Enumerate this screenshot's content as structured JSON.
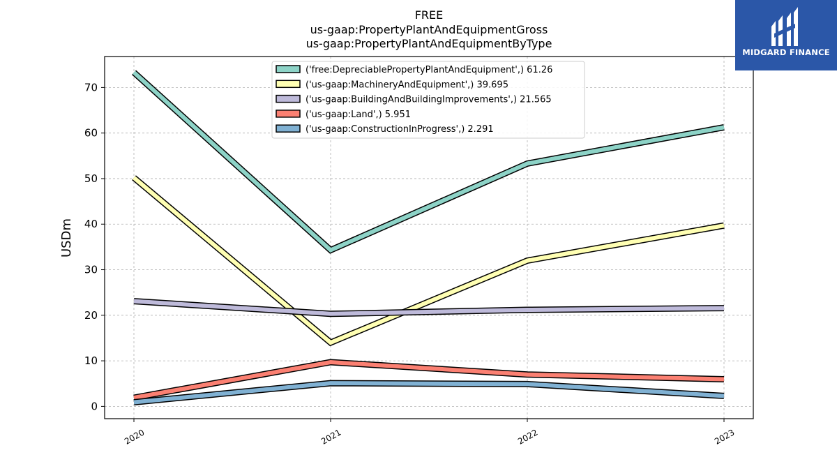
{
  "chart_data": {
    "type": "line",
    "title_lines": [
      "FREE",
      "us-gaap:PropertyPlantAndEquipmentGross",
      "us-gaap:PropertyPlantAndEquipmentByType"
    ],
    "xlabel": "",
    "ylabel": "USDm",
    "categories": [
      "2020",
      "2021",
      "2022",
      "2023"
    ],
    "ylim": [
      -2.7,
      76.8
    ],
    "yticks": [
      0,
      10,
      20,
      30,
      40,
      50,
      60,
      70
    ],
    "grid": true,
    "legend_position": "top-center",
    "series": [
      {
        "name": "('free:DepreciablePropertyPlantAndEquipment',) 61.26",
        "color": "#8dd3c7",
        "values": [
          73.3,
          34.3,
          53.3,
          61.26
        ]
      },
      {
        "name": "('us-gaap:MachineryAndEquipment',) 39.695",
        "color": "#ffffb3",
        "values": [
          50.2,
          14.0,
          32.0,
          39.695
        ]
      },
      {
        "name": "('us-gaap:BuildingAndBuildingImprovements',) 21.565",
        "color": "#bebada",
        "values": [
          23.1,
          20.3,
          21.2,
          21.565
        ]
      },
      {
        "name": "('us-gaap:Land',) 5.951",
        "color": "#fb8072",
        "values": [
          1.9,
          9.7,
          7.0,
          5.951
        ]
      },
      {
        "name": "('us-gaap:ConstructionInProgress',) 2.291",
        "color": "#80b1d3",
        "values": [
          0.9,
          5.1,
          4.9,
          2.291
        ]
      }
    ]
  },
  "logo": {
    "text": "MIDGARD FINANCE",
    "color": "#2b57a8"
  }
}
